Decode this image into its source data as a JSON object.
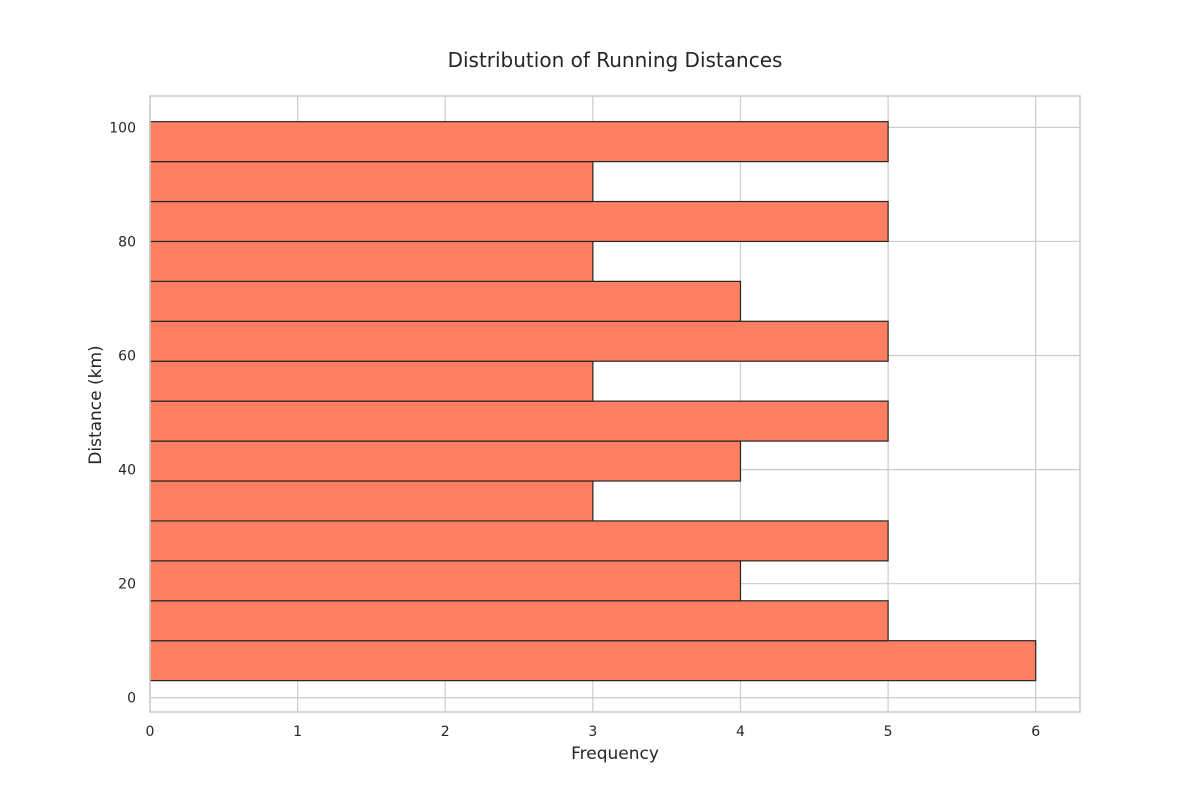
{
  "chart_data": {
    "type": "bar",
    "orientation": "horizontal",
    "title": "Distribution of Running Distances",
    "xlabel": "Frequency",
    "ylabel": "Distance (km)",
    "xlim": [
      0,
      6.3
    ],
    "ylim": [
      -2.5,
      105.5
    ],
    "xticks": [
      0,
      1,
      2,
      3,
      4,
      5,
      6
    ],
    "yticks": [
      0,
      20,
      40,
      60,
      80,
      100
    ],
    "grid": true,
    "bar_color": "#ff7f62",
    "edge_color": "#262626",
    "bins": [
      {
        "start": 3,
        "end": 10,
        "value": 6
      },
      {
        "start": 10,
        "end": 17,
        "value": 5
      },
      {
        "start": 17,
        "end": 24,
        "value": 4
      },
      {
        "start": 24,
        "end": 31,
        "value": 5
      },
      {
        "start": 31,
        "end": 38,
        "value": 3
      },
      {
        "start": 38,
        "end": 45,
        "value": 4
      },
      {
        "start": 45,
        "end": 52,
        "value": 5
      },
      {
        "start": 52,
        "end": 59,
        "value": 3
      },
      {
        "start": 59,
        "end": 66,
        "value": 5
      },
      {
        "start": 66,
        "end": 73,
        "value": 4
      },
      {
        "start": 73,
        "end": 80,
        "value": 3
      },
      {
        "start": 80,
        "end": 87,
        "value": 5
      },
      {
        "start": 87,
        "end": 94,
        "value": 3
      },
      {
        "start": 94,
        "end": 101,
        "value": 5
      }
    ]
  }
}
